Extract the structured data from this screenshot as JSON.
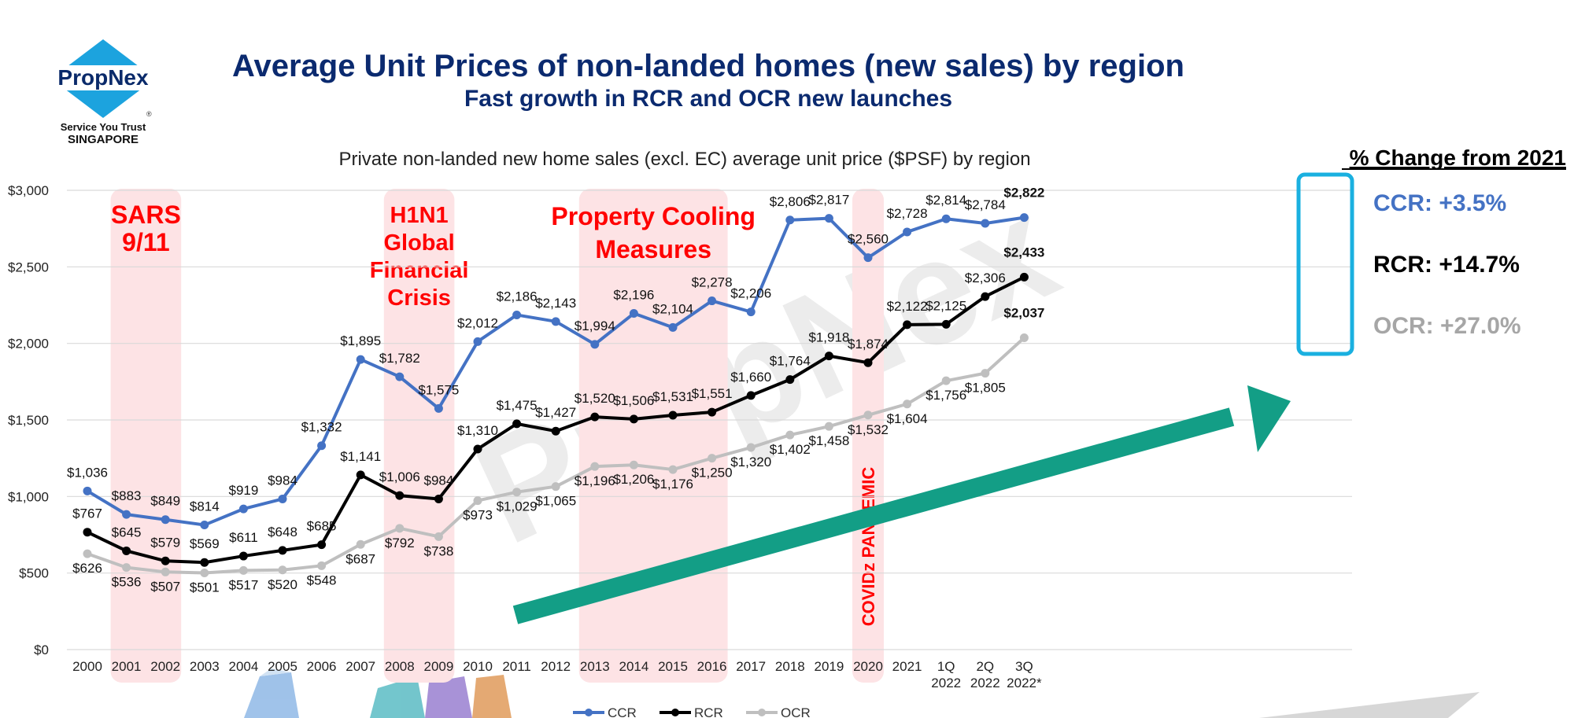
{
  "header": {
    "title": "Average Unit Prices of non-landed homes (new sales) by region",
    "subtitle": "Fast growth in RCR and OCR new launches"
  },
  "logo": {
    "brand": "PropNex",
    "registered": "®",
    "tagline": "Service You Trust",
    "country": "SINGAPORE"
  },
  "watermark": "PropNex",
  "change_panel": {
    "title": "% Change from 2021",
    "items": [
      {
        "label": "CCR: +3.5%",
        "color": "#4472C4"
      },
      {
        "label": "RCR: +14.7%",
        "color": "#000000"
      },
      {
        "label": "OCR: +27.0%",
        "color": "#A6A6A6"
      }
    ],
    "highlight_color": "#1AB0E0"
  },
  "colors": {
    "ccr": "#4472C4",
    "rcr": "#000000",
    "ocr": "#BFBFBF",
    "event_band": "#FDE3E5",
    "event_text": "#FF0000",
    "arrow": "#139E86",
    "title": "#0B2A6F"
  },
  "chart_data": {
    "type": "line",
    "title": "Private non-landed new home sales (excl. EC) average unit price ($PSF) by region",
    "ylim": [
      0,
      3000
    ],
    "y_ticks": [
      "$0",
      "$500",
      "$1,000",
      "$1,500",
      "$2,000",
      "$2,500",
      "$3,000"
    ],
    "y_tick_values": [
      0,
      500,
      1000,
      1500,
      2000,
      2500,
      3000
    ],
    "grid": true,
    "legend_position": "bottom-center",
    "categories": [
      [
        "2000"
      ],
      [
        "2001"
      ],
      [
        "2002"
      ],
      [
        "2003"
      ],
      [
        "2004"
      ],
      [
        "2005"
      ],
      [
        "2006"
      ],
      [
        "2007"
      ],
      [
        "2008"
      ],
      [
        "2009"
      ],
      [
        "2010"
      ],
      [
        "2011"
      ],
      [
        "2012"
      ],
      [
        "2013"
      ],
      [
        "2014"
      ],
      [
        "2015"
      ],
      [
        "2016"
      ],
      [
        "2017"
      ],
      [
        "2018"
      ],
      [
        "2019"
      ],
      [
        "2020"
      ],
      [
        "2021"
      ],
      [
        "1Q",
        "2022"
      ],
      [
        "2Q",
        "2022"
      ],
      [
        "3Q",
        "2022*"
      ]
    ],
    "series": [
      {
        "name": "CCR",
        "values": [
          1036,
          883,
          849,
          814,
          919,
          984,
          1332,
          1895,
          1782,
          1575,
          2012,
          2186,
          2143,
          1994,
          2196,
          2104,
          2278,
          2206,
          2806,
          2817,
          2560,
          2728,
          2814,
          2784,
          2822
        ],
        "labels": [
          "$1,036",
          "$883",
          "$849",
          "$814",
          "$919",
          "$984",
          "$1,332",
          "$1,895",
          "$1,782",
          "$1,575",
          "$2,012",
          "$2,186",
          "$2,143",
          "$1,994",
          "$2,196",
          "$2,104",
          "$2,278",
          "$2,206",
          "$2,806",
          "$2,817",
          "$2,560",
          "$2,728",
          "$2,814",
          "$2,784",
          "$2,822"
        ]
      },
      {
        "name": "RCR",
        "values": [
          767,
          645,
          579,
          569,
          611,
          648,
          685,
          1141,
          1006,
          984,
          1310,
          1475,
          1427,
          1520,
          1506,
          1531,
          1551,
          1660,
          1764,
          1918,
          1874,
          2122,
          2125,
          2306,
          2433
        ],
        "labels": [
          "$767",
          "$645",
          "$579",
          "$569",
          "$611",
          "$648",
          "$685",
          "$1,141",
          "$1,006",
          "$984",
          "$1,310",
          "$1,475",
          "$1,427",
          "$1,520",
          "$1,506",
          "$1,531",
          "$1,551",
          "$1,660",
          "$1,764",
          "$1,918",
          "$1,874",
          "$2,122",
          "$2,125",
          "$2,306",
          "$2,433"
        ]
      },
      {
        "name": "OCR",
        "values": [
          626,
          536,
          507,
          501,
          517,
          520,
          548,
          687,
          792,
          738,
          973,
          1029,
          1065,
          1196,
          1206,
          1176,
          1250,
          1320,
          1402,
          1458,
          1532,
          1604,
          1756,
          1805,
          2037
        ],
        "labels": [
          "$626",
          "$536",
          "$507",
          "$501",
          "$517",
          "$520",
          "$548",
          "$687",
          "$792",
          "$738",
          "$973",
          "$1,029",
          "$1,065",
          "$1,196",
          "$1,206",
          "$1,176",
          "$1,250",
          "$1,320",
          "$1,402",
          "$1,458",
          "$1,532",
          "$1,604",
          "$1,756",
          "$1,805",
          "$2,037"
        ]
      }
    ],
    "event_bands": [
      {
        "from": 1,
        "to": 2,
        "lines": [
          "SARS",
          "9/11"
        ]
      },
      {
        "from": 8,
        "to": 9,
        "lines": [
          "H1N1",
          "Global",
          "Financial",
          "Crisis"
        ]
      },
      {
        "from": 13,
        "to": 16,
        "lines": [
          "Property Cooling",
          "Measures"
        ]
      },
      {
        "from": 20,
        "to": 20,
        "lines": [
          "COVIDz PANDEMIC"
        ],
        "vertical": true
      }
    ]
  }
}
